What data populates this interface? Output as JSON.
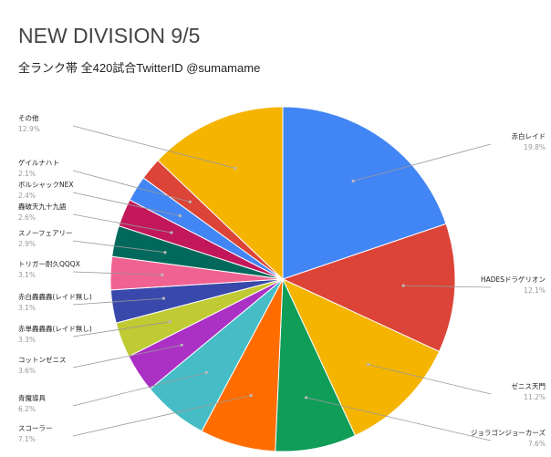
{
  "chart_data": {
    "type": "pie",
    "title": "NEW DIVISION 9/5",
    "subtitle": "全ランク帯 全420試合TwitterID @sumamame",
    "slices": [
      {
        "label": "赤白レイド",
        "pct_label": "19.8%",
        "value": 19.8,
        "color": "#4285f4"
      },
      {
        "label": "HADESドラゲリオン",
        "pct_label": "12.1%",
        "value": 12.1,
        "color": "#db4437"
      },
      {
        "label": "ゼニス天門",
        "pct_label": "11.2%",
        "value": 11.2,
        "color": "#f4b400"
      },
      {
        "label": "ジョラゴンジョーカーズ",
        "pct_label": "7.6%",
        "value": 7.6,
        "color": "#0f9d58"
      },
      {
        "label": "スコーラー",
        "pct_label": "7.1%",
        "value": 7.1,
        "color": "#ff6d00"
      },
      {
        "label": "青魔導具",
        "pct_label": "6.2%",
        "value": 6.2,
        "color": "#46bdc6"
      },
      {
        "label": "コットンゼニス",
        "pct_label": "3.6%",
        "value": 3.6,
        "color": "#ab30c4"
      },
      {
        "label": "赤単轟轟轟(レイド無し)",
        "pct_label": "3.3%",
        "value": 3.3,
        "color": "#c0ca33"
      },
      {
        "label": "赤白轟轟轟(レイド無し)",
        "pct_label": "3.1%",
        "value": 3.1,
        "color": "#3949ab"
      },
      {
        "label": "トリガー耐久QQQX",
        "pct_label": "3.1%",
        "value": 3.1,
        "color": "#f06292"
      },
      {
        "label": "スノーフェアリー",
        "pct_label": "2.9%",
        "value": 2.9,
        "color": "#00695c"
      },
      {
        "label": "轟破天九十九語",
        "pct_label": "2.6%",
        "value": 2.6,
        "color": "#c2185b"
      },
      {
        "label": "ボルシャックNEX",
        "pct_label": "2.4%",
        "value": 2.4,
        "color": "#4285f4"
      },
      {
        "label": "ゲイルナハト",
        "pct_label": "2.1%",
        "value": 2.1,
        "color": "#db4437"
      },
      {
        "label": "その他",
        "pct_label": "12.9%",
        "value": 12.9,
        "color": "#f4b400"
      }
    ]
  }
}
